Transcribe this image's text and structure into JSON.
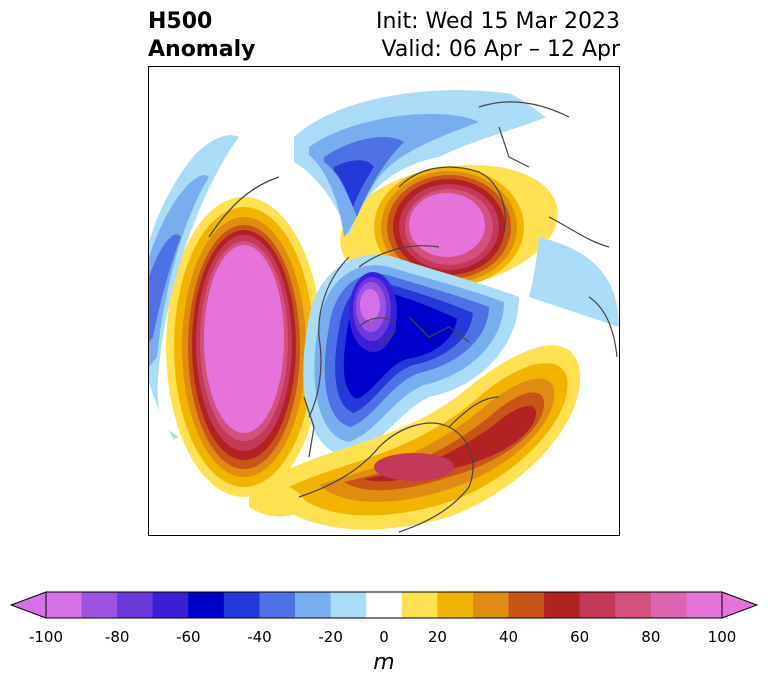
{
  "title": {
    "left_line1": "H500",
    "left_line2": "Anomaly",
    "right_line1": "Init: Wed 15 Mar 2023",
    "right_line2": "Valid: 06 Apr – 12 Apr"
  },
  "colorbar": {
    "label": "m",
    "levels": [
      -100,
      -90,
      -80,
      -70,
      -60,
      -50,
      -40,
      -30,
      -20,
      -10,
      10,
      20,
      30,
      40,
      50,
      60,
      70,
      80,
      90,
      100
    ],
    "colors": [
      "#d670e6",
      "#9e52e0",
      "#6a38db",
      "#3b1fd6",
      "#0000cc",
      "#2538d9",
      "#4e72e6",
      "#78aef0",
      "#aadcf8",
      "#ffffff",
      "#ffe050",
      "#f2b400",
      "#e08c10",
      "#c85418",
      "#b22222",
      "#c43858",
      "#d4507e",
      "#dc64b0",
      "#e673d9"
    ],
    "ticks": [
      "-100",
      "-80",
      "-60",
      "-40",
      "-20",
      "0",
      "20",
      "40",
      "60",
      "80",
      "100"
    ],
    "extend": "both"
  },
  "anomaly_centers": [
    {
      "name": "north-pacific-ridge",
      "sign": "positive",
      "peak": 100
    },
    {
      "name": "arctic-siberia-ridge",
      "sign": "positive",
      "peak": 100
    },
    {
      "name": "eastern-us-atlantic-ridge",
      "sign": "positive",
      "peak": 70
    },
    {
      "name": "hudson-bay-trough",
      "sign": "negative",
      "peak": -100
    },
    {
      "name": "western-canada-trough",
      "sign": "negative",
      "peak": -60
    },
    {
      "name": "north-atlantic-trough",
      "sign": "negative",
      "peak": -60
    },
    {
      "name": "eurasia-trough",
      "sign": "negative",
      "peak": -40
    }
  ]
}
